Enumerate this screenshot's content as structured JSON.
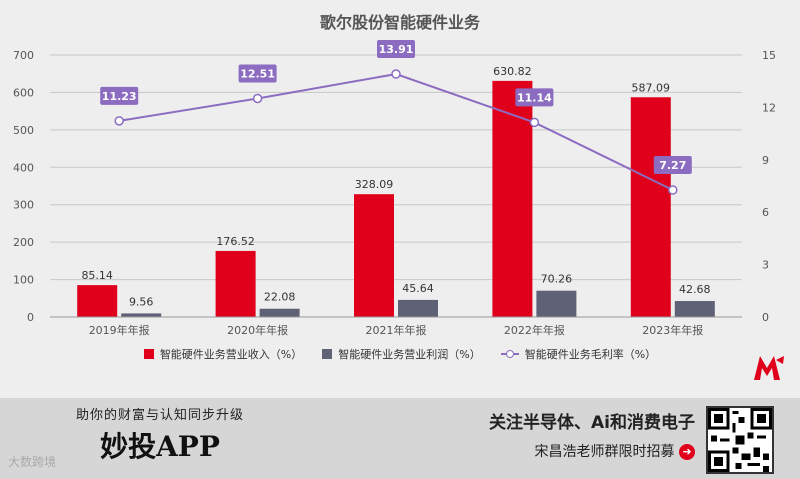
{
  "chart_data": {
    "type": "bar",
    "title": "歌尔股份智能硬件业务",
    "categories": [
      "2019年年报",
      "2020年年报",
      "2021年年报",
      "2022年年报",
      "2023年年报"
    ],
    "series": [
      {
        "name": "智能硬件业务营业收入（%）",
        "type": "bar",
        "axis": "left",
        "color": "#e0001b",
        "values": [
          85.14,
          176.52,
          328.09,
          630.82,
          587.09
        ]
      },
      {
        "name": "智能硬件业务营业利润（%）",
        "type": "bar",
        "axis": "left",
        "color": "#5f6177",
        "values": [
          9.56,
          22.08,
          45.64,
          70.26,
          42.68
        ]
      },
      {
        "name": "智能硬件业务毛利率（%）",
        "type": "line",
        "axis": "right",
        "color": "#8b6cc1",
        "values": [
          11.23,
          12.51,
          13.91,
          11.14,
          7.27
        ]
      }
    ],
    "ylim_left": [
      0,
      700
    ],
    "yticks_left": [
      0,
      100,
      200,
      300,
      400,
      500,
      600,
      700
    ],
    "ylim_right": [
      0,
      15
    ],
    "yticks_right": [
      0,
      3,
      6,
      9,
      12,
      15
    ],
    "grid": true,
    "legend": "bottom"
  },
  "banner": {
    "slogan": "助你的财富与认知同步升级",
    "app_name": "妙投APP",
    "headline": "关注半导体、Ai和消费电子",
    "subline": "宋昌浩老师群限时招募",
    "arrow_icon": "➜",
    "watermark": "大数跨境"
  }
}
